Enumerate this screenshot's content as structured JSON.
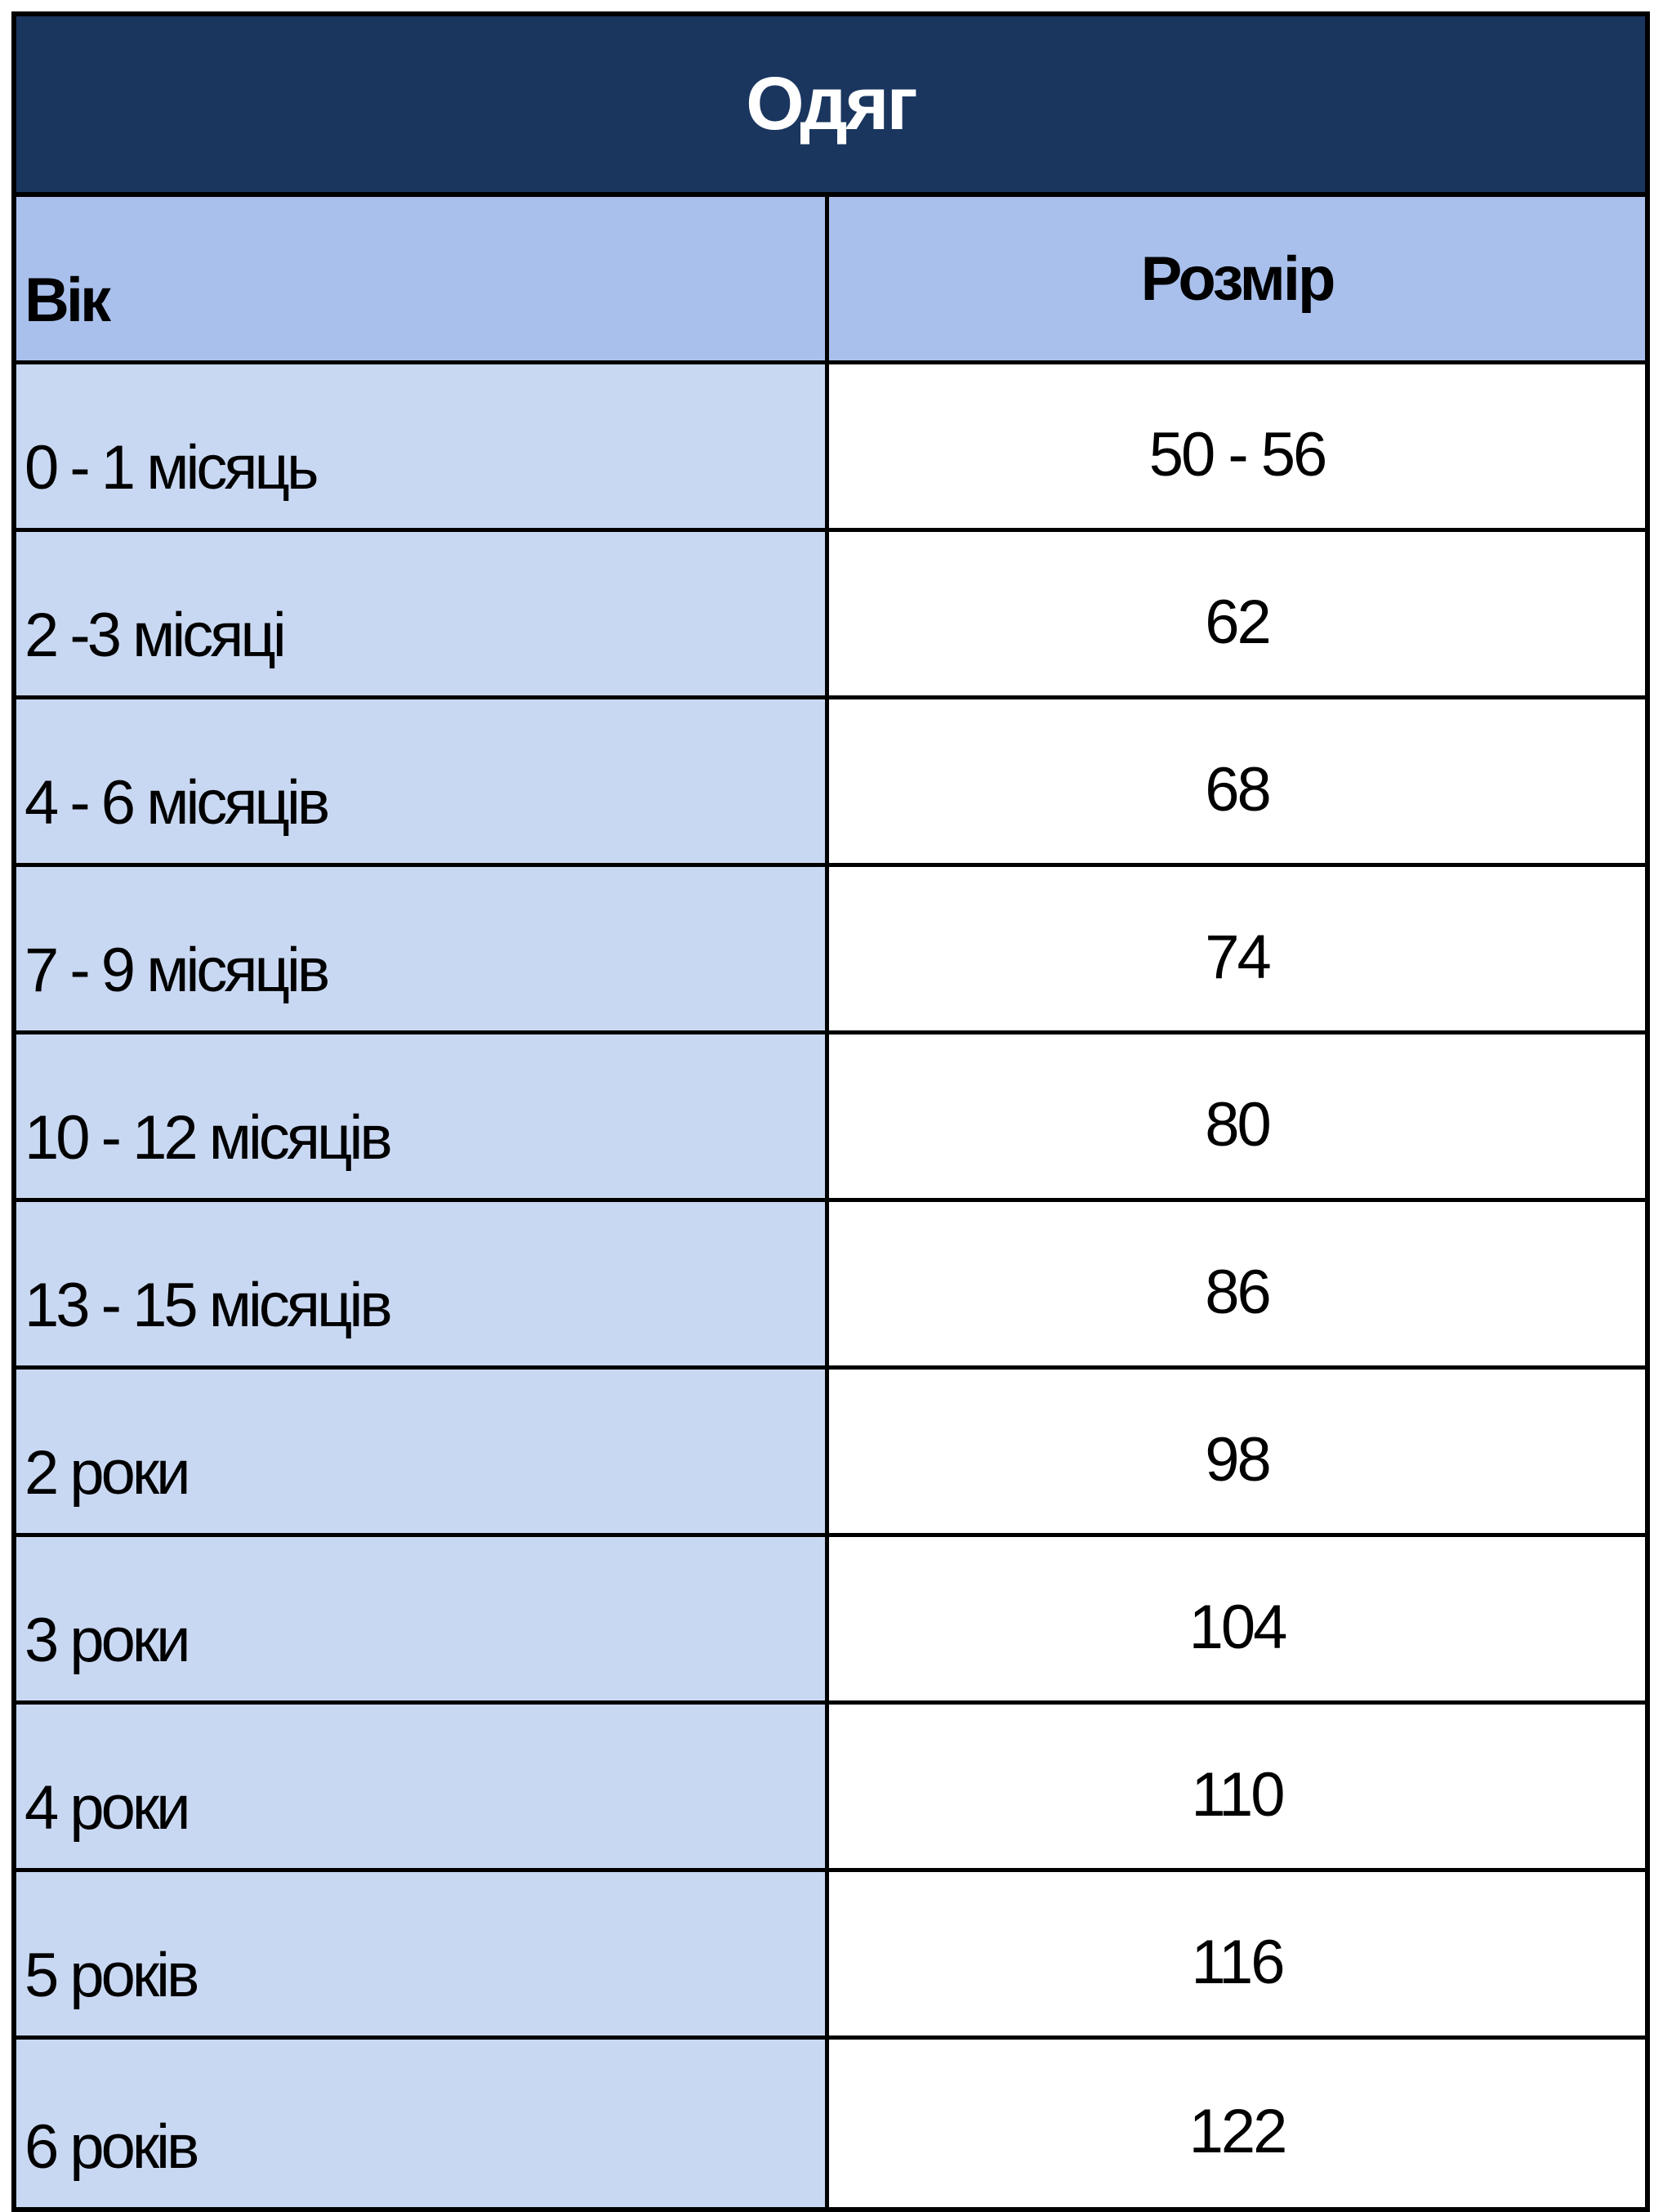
{
  "table": {
    "title": "Одяг",
    "headers": {
      "age": "Вік",
      "size": "Розмір"
    },
    "rows": [
      {
        "age": "0 - 1 місяць",
        "size": "50 - 56"
      },
      {
        "age": "2 -3 місяці",
        "size": "62"
      },
      {
        "age": "4 - 6 місяців",
        "size": "68"
      },
      {
        "age": "7 - 9 місяців",
        "size": "74"
      },
      {
        "age": "10 - 12 місяців",
        "size": "80"
      },
      {
        "age": "13 - 15 місяців",
        "size": "86"
      },
      {
        "age": "2 роки",
        "size": "98"
      },
      {
        "age": "3 роки",
        "size": "104"
      },
      {
        "age": "4 роки",
        "size": "110"
      },
      {
        "age": "5 років",
        "size": "116"
      },
      {
        "age": "6 років",
        "size": "122"
      }
    ]
  },
  "colors": {
    "title_bg": "#1a365f",
    "header_bg": "#a9c0ec",
    "age_col_bg": "#c9d8f2",
    "size_col_bg": "#ffffff"
  }
}
